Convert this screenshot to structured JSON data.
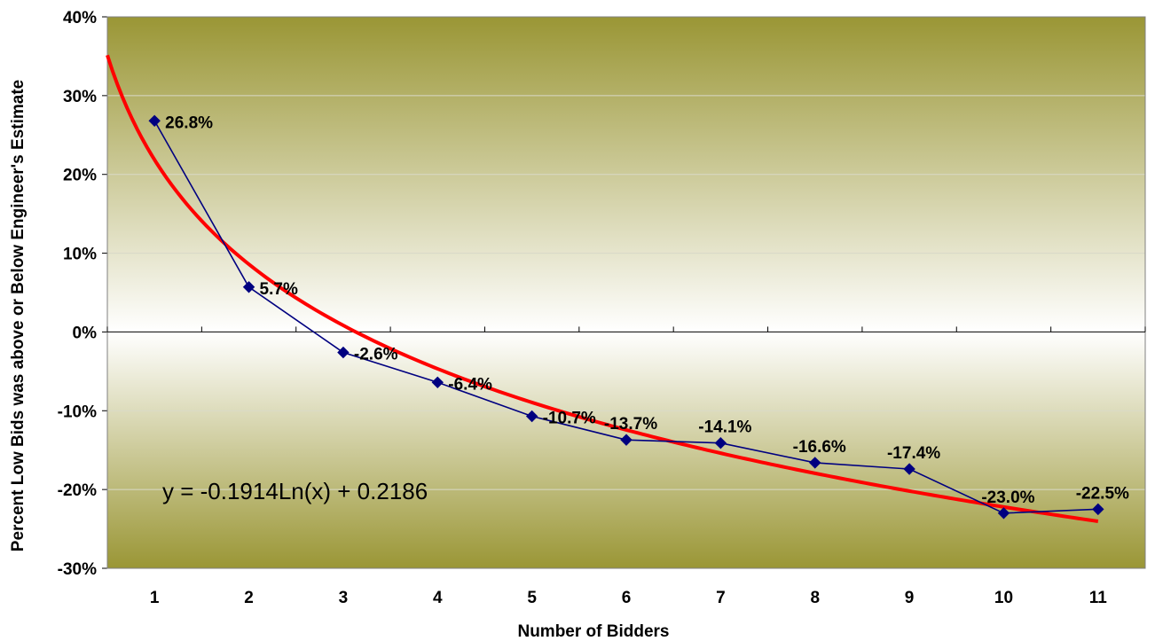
{
  "chart_data": {
    "type": "line",
    "xlabel": "Number of Bidders",
    "ylabel": "Percent Low Bids was above or Below Engineer's Estimate",
    "categories": [
      "1",
      "2",
      "3",
      "4",
      "5",
      "6",
      "7",
      "8",
      "9",
      "10",
      "11"
    ],
    "ylim": [
      -30,
      40
    ],
    "yticks": [
      "40%",
      "30%",
      "20%",
      "10%",
      "0%",
      "-10%",
      "-20%",
      "-30%"
    ],
    "ytick_values": [
      40,
      30,
      20,
      10,
      0,
      -10,
      -20,
      -30
    ],
    "grid": true,
    "series": [
      {
        "values": [
          26.8,
          5.7,
          -2.6,
          -6.4,
          -10.7,
          -13.7,
          -14.1,
          -16.6,
          -17.4,
          -23.0,
          -22.5
        ],
        "labels": [
          "26.8%",
          "5.7%",
          "-2.6%",
          "-6.4%",
          "-10.7%",
          "-13.7%",
          "-14.1%",
          "-16.6%",
          "-17.4%",
          "-23.0%",
          "-22.5%"
        ],
        "color": "#000080",
        "marker": "diamond"
      }
    ],
    "trendline": {
      "type": "logarithmic",
      "slope": -0.1914,
      "intercept": 0.2186,
      "equation": "y = -0.1914Ln(x) + 0.2186",
      "x_range": [
        0.5,
        11
      ],
      "color": "#FF0000"
    },
    "colors": {
      "band_dark": "#9A9635",
      "band_light": "#FFFFFF",
      "gridline": "#D9D9C8",
      "axis": "#000000"
    }
  }
}
